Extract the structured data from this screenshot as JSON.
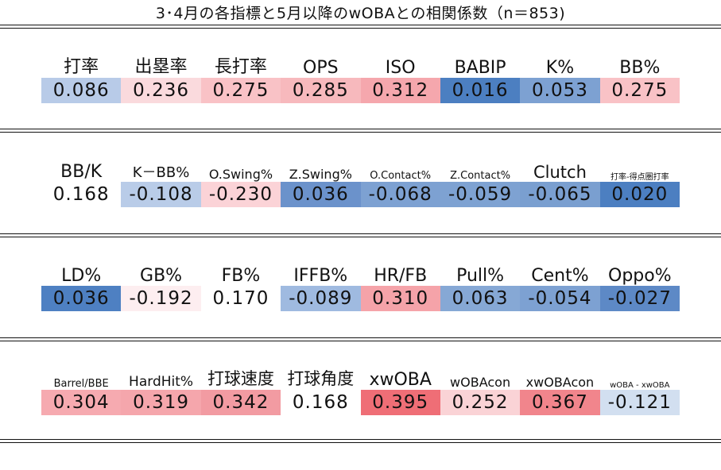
{
  "title": "3･4月の各指標と5月以降のwOBAとの相関係数（n＝853)",
  "chart_data": {
    "type": "heatmap",
    "title": "3･4月の各指標と5月以降のwOBAとの相関係数（n＝853)",
    "color_scale": {
      "negative": "#4a7ec0",
      "zero": "#ffffff",
      "positive": "#ef5a62"
    },
    "rows": [
      {
        "labels": [
          "打率",
          "出塁率",
          "長打率",
          "OPS",
          "ISO",
          "BABIP",
          "K%",
          "BB%"
        ],
        "values": [
          "0.086",
          "0.236",
          "0.275",
          "0.285",
          "0.312",
          "0.016",
          "0.053",
          "0.275"
        ],
        "colors": [
          "#b8cbe8",
          "#fadadd",
          "#f9c2c6",
          "#f7b9bd",
          "#f5a7ad",
          "#4c7fc1",
          "#7da1d2",
          "#f9c2c6"
        ]
      },
      {
        "labels": [
          "BB/K",
          "K－BB%",
          "O.Swing%",
          "Z.Swing%",
          "O.Contact%",
          "Z.Contact%",
          "Clutch",
          "打率-得点圏打率"
        ],
        "values": [
          "0.168",
          "-0.108",
          "-0.230",
          "0.036",
          "-0.068",
          "-0.059",
          "-0.065",
          "0.020"
        ],
        "colors": [
          "#ffffff",
          "#b9cce8",
          "#fbd3d7",
          "#6b92cb",
          "#7da1d2",
          "#7ea2d2",
          "#7a9fd0",
          "#4c7fc1"
        ]
      },
      {
        "labels": [
          "LD%",
          "GB%",
          "FB%",
          "IFFB%",
          "HR/FB",
          "Pull%",
          "Cent%",
          "Oppo%"
        ],
        "values": [
          "0.036",
          "-0.192",
          "0.170",
          "-0.089",
          "0.310",
          "0.063",
          "-0.054",
          "-0.027"
        ],
        "colors": [
          "#4e80c2",
          "#fdeef0",
          "#ffffff",
          "#9fbae0",
          "#f5a3a9",
          "#86a8d5",
          "#7da1d2",
          "#5d89c6"
        ]
      },
      {
        "labels": [
          "Barrel/BBE",
          "HardHit%",
          "打球速度",
          "打球角度",
          "xwOBA",
          "wOBAcon",
          "xwOBAcon",
          "wOBA - xwOBA"
        ],
        "values": [
          "0.304",
          "0.319",
          "0.342",
          "0.168",
          "0.395",
          "0.252",
          "0.367",
          "-0.121"
        ],
        "colors": [
          "#f6aab0",
          "#f5a6ac",
          "#f29ba2",
          "#ffffff",
          "#ef6e76",
          "#fad3d6",
          "#f1858c",
          "#d2dff0"
        ]
      }
    ]
  }
}
